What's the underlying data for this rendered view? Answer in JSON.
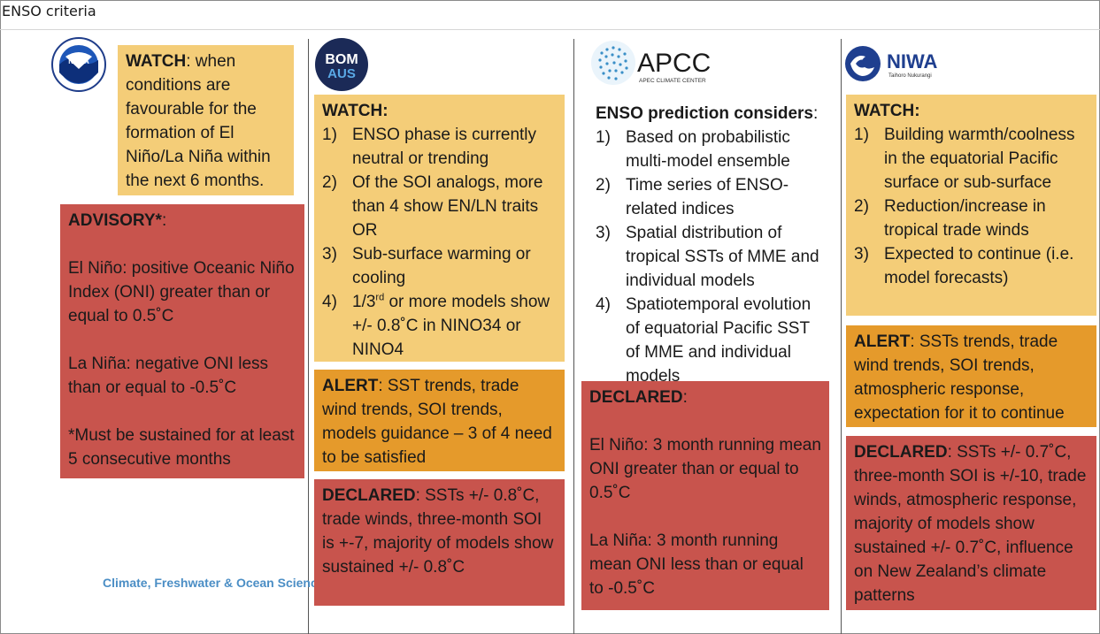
{
  "title": "ENSO criteria",
  "footer": "Climate, Freshwater & Ocean Science",
  "logos": {
    "noaa": "NOAA",
    "bom_top": "BOM",
    "bom_bottom": "AUS",
    "apcc": "APCC",
    "apcc_sub": "APEC CLIMATE CENTER",
    "niwa": "NIWA",
    "niwa_sub": "Taihoro Nukurangi"
  },
  "noaa": {
    "watch_label": "WATCH",
    "watch_text": ": when conditions are favourable for the formation of El Niño/La Niña within the next 6 months.",
    "advisory_label": "ADVISORY*",
    "advisory_colon": ":",
    "advisory_p1": "El Niño: positive Oceanic Niño Index (ONI) greater than or equal to 0.5˚C",
    "advisory_p2": "La Niña: negative ONI less than or equal to -0.5˚C",
    "advisory_p3": "*Must be sustained for at least 5 consecutive months"
  },
  "bom": {
    "watch_label": "WATCH:",
    "watch_items": [
      {
        "n": "1)",
        "t": "ENSO phase is currently neutral or trending"
      },
      {
        "n": "2)",
        "t": "Of the SOI analogs, more than 4 show EN/LN traits OR"
      },
      {
        "n": "3)",
        "t": "Sub-surface warming or cooling"
      }
    ],
    "item4_n": "4)",
    "item4_pre": "1/3",
    "item4_sup": "rd",
    "item4_post": " or more models show +/- 0.8˚C in NINO34 or NINO4",
    "alert_label": "ALERT",
    "alert_text": ": SST trends, trade wind trends, SOI trends, models guidance – 3 of 4 need to be satisfied",
    "declared_label": "DECLARED",
    "declared_text": ": SSTs +/- 0.8˚C, trade winds, three-month SOI is +-7, majority of models show sustained +/- 0.8˚C"
  },
  "apcc": {
    "heading_label": "ENSO prediction considers",
    "heading_colon": ":",
    "items": [
      {
        "n": "1)",
        "t": "Based on probabilistic multi-model ensemble"
      },
      {
        "n": "2)",
        "t": "Time series of ENSO-related indices"
      },
      {
        "n": "3)",
        "t": "Spatial distribution of tropical SSTs of MME and individual models"
      },
      {
        "n": "4)",
        "t": "Spatiotemporal evolution of equatorial Pacific SST of MME and individual models"
      }
    ],
    "declared_label": "DECLARED",
    "declared_colon": ":",
    "declared_p1": "El Niño: 3 month running mean ONI greater than or equal to 0.5˚C",
    "declared_p2": "La Niña: 3 month running mean ONI less than or equal to -0.5˚C"
  },
  "niwa": {
    "watch_label": "WATCH:",
    "watch_items": [
      {
        "n": "1)",
        "t": "Building warmth/coolness in the equatorial Pacific surface or sub-surface"
      },
      {
        "n": "2)",
        "t": "Reduction/increase in tropical trade winds"
      },
      {
        "n": "3)",
        "t": "Expected to continue (i.e. model forecasts)"
      }
    ],
    "alert_label": "ALERT",
    "alert_text": ": SSTs trends, trade wind trends, SOI trends, atmospheric response, expectation for it to continue",
    "declared_label": "DECLARED",
    "declared_text": ": SSTs +/- 0.7˚C, three-month SOI is +/-10, trade winds, atmospheric response, majority of models show sustained +/- 0.7˚C, influence on New Zealand’s climate patterns"
  }
}
